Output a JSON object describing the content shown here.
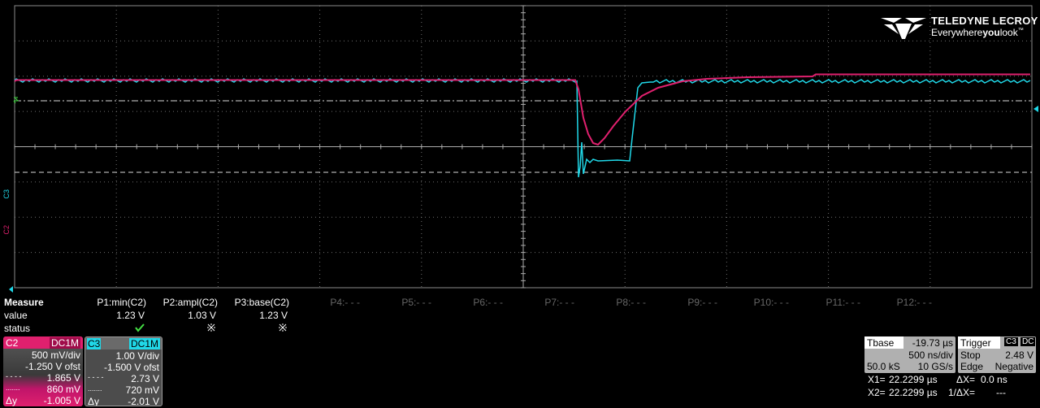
{
  "logo": {
    "brand": "TELEDYNE LECROY",
    "tagline_pre": "Everywhere",
    "tagline_bold": "you",
    "tagline_post": "look",
    "tm": "™"
  },
  "channel_markers": {
    "c3": "C3",
    "c2": "C2"
  },
  "colors": {
    "c2": "#e0206e",
    "c3": "#20d8e8",
    "grid": "#8a8a8a",
    "reference_line": "#d8d8d8"
  },
  "measure": {
    "header": "Measure",
    "row_value": "value",
    "row_status": "status",
    "params": [
      {
        "label": "P1:min(C2)",
        "value": "1.23 V",
        "status": "check",
        "active": true
      },
      {
        "label": "P2:ampl(C2)",
        "value": "1.03 V",
        "status": "warn",
        "active": true
      },
      {
        "label": "P3:base(C2)",
        "value": "1.23 V",
        "status": "warn",
        "active": true
      },
      {
        "label": "P4:- - -",
        "active": false
      },
      {
        "label": "P5:- - -",
        "active": false
      },
      {
        "label": "P6:- - -",
        "active": false
      },
      {
        "label": "P7:- - -",
        "active": false
      },
      {
        "label": "P8:- - -",
        "active": false
      },
      {
        "label": "P9:- - -",
        "active": false
      },
      {
        "label": "P10:- - -",
        "active": false
      },
      {
        "label": "P11:- - -",
        "active": false
      },
      {
        "label": "P12:- - -",
        "active": false
      }
    ]
  },
  "ch2": {
    "name": "C2",
    "coupling": "DC1M",
    "scale": "500 mV/div",
    "offset": "-1.250 V ofst",
    "cursor1": "1.865 V",
    "cursor2": "860 mV",
    "dy_label": "Δy",
    "dy": "-1.005 V"
  },
  "ch3": {
    "name": "C3",
    "coupling": "DC1M",
    "scale": "1.00 V/div",
    "offset": "-1.500 V ofst",
    "cursor1": "2.73 V",
    "cursor2": "720 mV",
    "dy_label": "Δy",
    "dy": "-2.01 V"
  },
  "timebase": {
    "label": "Tbase",
    "delay": "-19.73 µs",
    "scale": "500 ns/div",
    "samples": "50.0 kS",
    "rate": "10 GS/s"
  },
  "trigger": {
    "label": "Trigger",
    "source": "C3",
    "coupling": "DC",
    "mode": "Stop",
    "level": "2.48 V",
    "type": "Edge",
    "slope": "Negative"
  },
  "cursors": {
    "x1_label": "X1=",
    "x1": "22.2299 µs",
    "x2_label": "X2=",
    "x2": "22.2299 µs",
    "dx_label": "ΔX=",
    "dx": "0.0 ns",
    "inv_dx_label": "1/ΔX=",
    "inv_dx": "---"
  }
}
